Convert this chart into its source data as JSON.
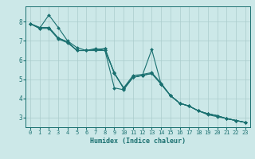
{
  "xlabel": "Humidex (Indice chaleur)",
  "xlim": [
    -0.5,
    23.5
  ],
  "ylim": [
    2.5,
    8.8
  ],
  "xticks": [
    0,
    1,
    2,
    3,
    4,
    5,
    6,
    7,
    8,
    9,
    10,
    11,
    12,
    13,
    14,
    15,
    16,
    17,
    18,
    19,
    20,
    21,
    22,
    23
  ],
  "yticks": [
    3,
    4,
    5,
    6,
    7,
    8
  ],
  "background_color": "#cce8e8",
  "grid_color": "#aacccc",
  "line_color": "#1a7070",
  "lines": [
    [
      7.9,
      7.65,
      8.35,
      7.7,
      7.0,
      6.65,
      6.5,
      6.6,
      6.5,
      4.55,
      4.45,
      5.1,
      5.2,
      6.55,
      4.75,
      4.15,
      3.75,
      3.6,
      3.35,
      3.2,
      3.1,
      2.95,
      2.85,
      2.75
    ],
    [
      7.9,
      7.7,
      7.7,
      7.15,
      6.95,
      6.5,
      6.5,
      6.55,
      6.6,
      5.3,
      4.55,
      5.2,
      5.25,
      5.35,
      4.8,
      4.15,
      3.75,
      3.6,
      3.35,
      3.15,
      3.05,
      2.95,
      2.85,
      2.75
    ],
    [
      7.9,
      7.7,
      7.7,
      7.15,
      6.95,
      6.5,
      6.5,
      6.5,
      6.6,
      5.3,
      4.55,
      5.1,
      5.2,
      5.3,
      4.75,
      4.15,
      3.75,
      3.6,
      3.35,
      3.2,
      3.1,
      2.95,
      2.85,
      2.75
    ],
    [
      7.9,
      7.65,
      7.65,
      7.1,
      6.9,
      6.5,
      6.5,
      6.5,
      6.5,
      5.35,
      4.5,
      5.1,
      5.2,
      5.3,
      4.75,
      4.15,
      3.75,
      3.6,
      3.35,
      3.2,
      3.1,
      2.95,
      2.85,
      2.75
    ]
  ],
  "tick_fontsize": 5.0,
  "xlabel_fontsize": 6.0,
  "linewidth": 0.8,
  "markersize": 2.0
}
